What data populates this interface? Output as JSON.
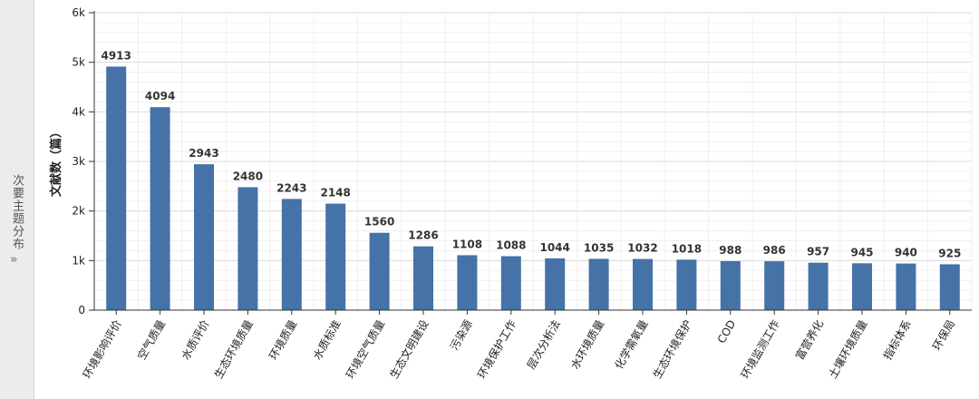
{
  "sidebar": {
    "label": "次要主题分布",
    "arrow": "»"
  },
  "chart_data": {
    "type": "bar",
    "title": "",
    "xlabel": "",
    "ylabel": "文献数（篇）",
    "ylim": [
      0,
      6000
    ],
    "yticks": [
      0,
      1000,
      2000,
      3000,
      4000,
      5000,
      6000
    ],
    "ytick_labels": [
      "0",
      "1k",
      "2k",
      "3k",
      "4k",
      "5k",
      "6k"
    ],
    "grid": true,
    "bar_color": "#4572a7",
    "categories": [
      "环境影响评价",
      "空气质量",
      "水质评价",
      "生态环境质量",
      "环境质量",
      "水质标准",
      "环境空气质量",
      "生态文明建设",
      "污染源",
      "环境保护工作",
      "层次分析法",
      "水环境质量",
      "化学需氧量",
      "生态环境保护",
      "COD",
      "环境监测工作",
      "富营养化",
      "土壤环境质量",
      "指标体系",
      "环保局"
    ],
    "values": [
      4913,
      4094,
      2943,
      2480,
      2243,
      2148,
      1560,
      1286,
      1108,
      1088,
      1044,
      1035,
      1032,
      1018,
      988,
      986,
      957,
      945,
      940,
      925
    ]
  }
}
